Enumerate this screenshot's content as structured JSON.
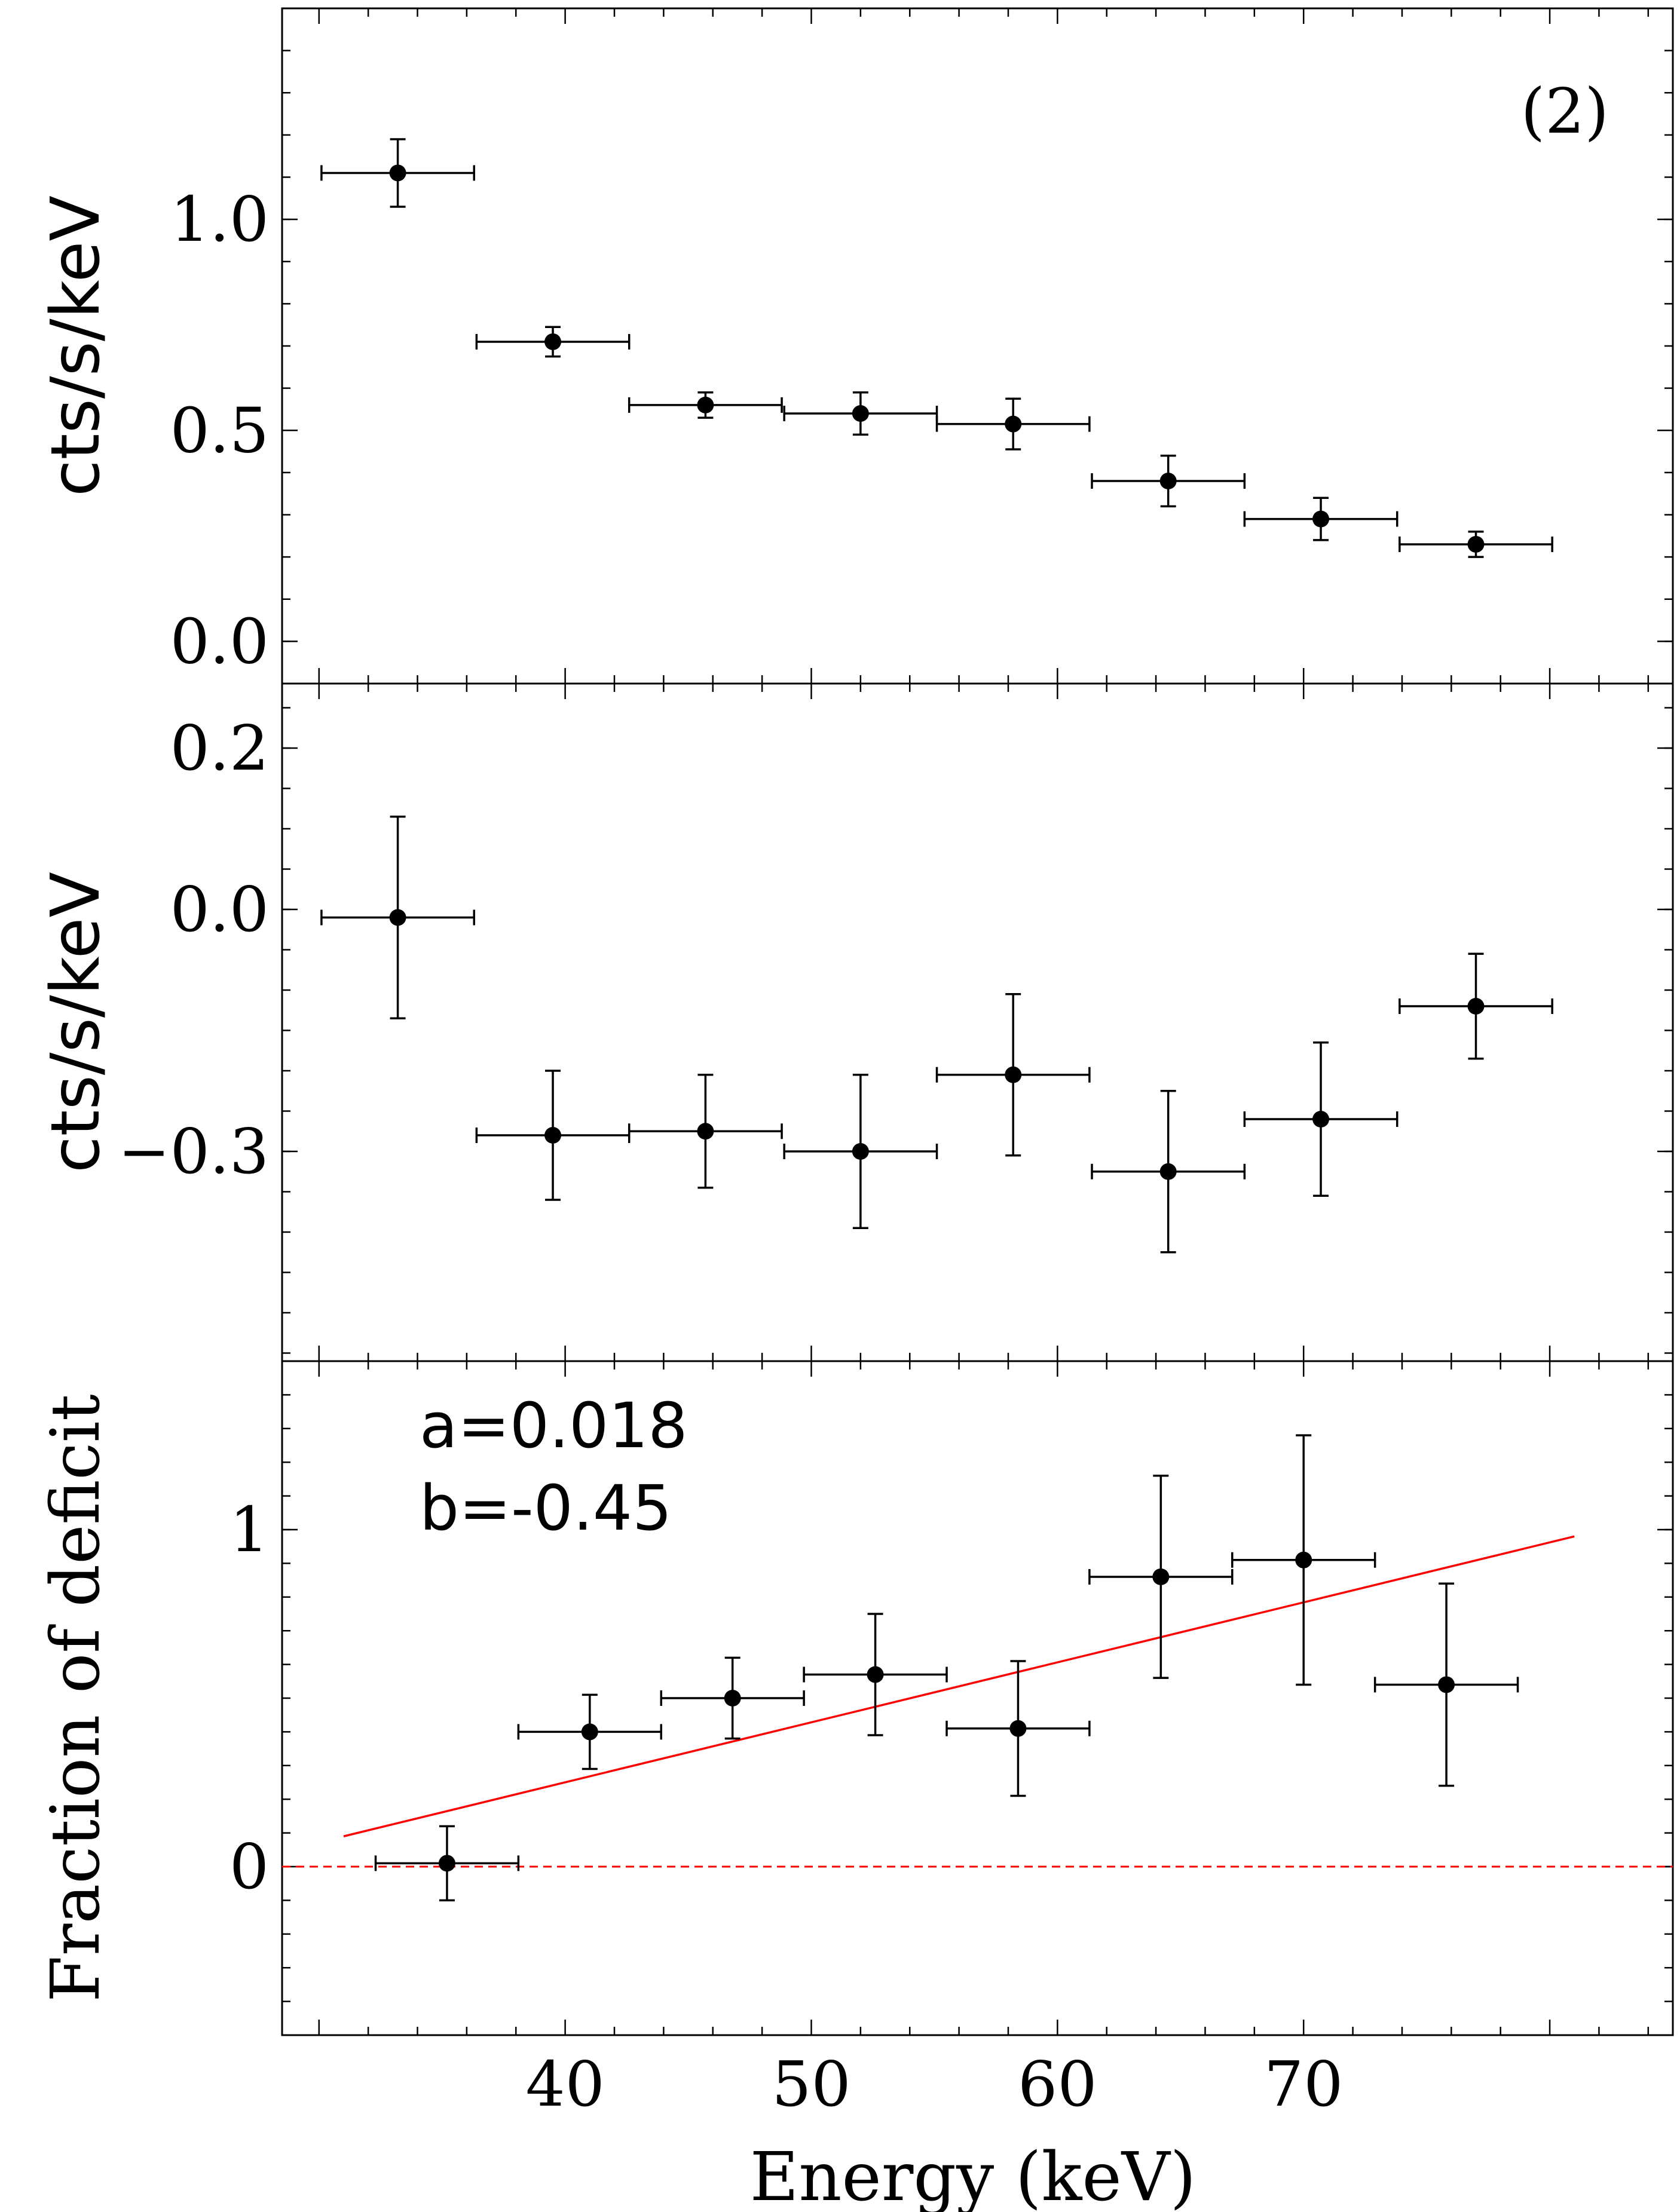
{
  "chart_data": [
    {
      "type": "scatter",
      "panel": "top",
      "ylabel": "cts/s/keV",
      "annotation": "(2)",
      "xlim": [
        28.5,
        85.0
      ],
      "ylim": [
        -0.1,
        1.5
      ],
      "yticks": [
        0.0,
        0.5,
        1.0
      ],
      "ytick_labels": [
        "0.0",
        "0.5",
        "1.0"
      ],
      "points": [
        {
          "x": 33.2,
          "xerr": 3.1,
          "y": 1.11,
          "yerr": 0.08
        },
        {
          "x": 39.5,
          "xerr": 3.1,
          "y": 0.71,
          "yerr": 0.035
        },
        {
          "x": 45.7,
          "xerr": 3.1,
          "y": 0.56,
          "yerr": 0.03
        },
        {
          "x": 52.0,
          "xerr": 3.1,
          "y": 0.54,
          "yerr": 0.05
        },
        {
          "x": 58.2,
          "xerr": 3.1,
          "y": 0.515,
          "yerr": 0.06
        },
        {
          "x": 64.5,
          "xerr": 3.1,
          "y": 0.38,
          "yerr": 0.06
        },
        {
          "x": 70.7,
          "xerr": 3.1,
          "y": 0.29,
          "yerr": 0.05
        },
        {
          "x": 77.0,
          "xerr": 3.1,
          "y": 0.23,
          "yerr": 0.03
        }
      ]
    },
    {
      "type": "scatter",
      "panel": "middle",
      "ylabel": "cts/s/keV",
      "xlim": [
        28.5,
        85.0
      ],
      "ylim": [
        -0.56,
        0.28
      ],
      "yticks": [
        -0.3,
        0.0,
        0.2
      ],
      "ytick_labels": [
        "−0.3",
        "0.0",
        "0.2"
      ],
      "points": [
        {
          "x": 33.2,
          "xerr": 3.1,
          "y": -0.01,
          "yerr": 0.125
        },
        {
          "x": 39.5,
          "xerr": 3.1,
          "y": -0.28,
          "yerr": 0.08
        },
        {
          "x": 45.7,
          "xerr": 3.1,
          "y": -0.275,
          "yerr": 0.07
        },
        {
          "x": 52.0,
          "xerr": 3.1,
          "y": -0.3,
          "yerr": 0.095
        },
        {
          "x": 58.2,
          "xerr": 3.1,
          "y": -0.205,
          "yerr": 0.1
        },
        {
          "x": 64.5,
          "xerr": 3.1,
          "y": -0.325,
          "yerr": 0.1
        },
        {
          "x": 70.7,
          "xerr": 3.1,
          "y": -0.26,
          "yerr": 0.095
        },
        {
          "x": 77.0,
          "xerr": 3.1,
          "y": -0.12,
          "yerr": 0.065
        }
      ]
    },
    {
      "type": "scatter",
      "panel": "bottom",
      "ylabel": "Fraction of deficit",
      "xlabel": "Energy (keV)",
      "annotations": [
        "a=0.018",
        "b=-0.45"
      ],
      "xlim": [
        28.5,
        85.0
      ],
      "ylim": [
        -0.5,
        1.5
      ],
      "yticks": [
        0,
        1
      ],
      "ytick_labels": [
        "0",
        "1"
      ],
      "xticks": [
        40,
        50,
        60,
        70
      ],
      "xtick_labels": [
        "40",
        "50",
        "60",
        "70"
      ],
      "points": [
        {
          "x": 35.2,
          "xerr": 2.9,
          "y": 0.01,
          "yerr": 0.11
        },
        {
          "x": 41.0,
          "xerr": 2.9,
          "y": 0.4,
          "yerr": 0.11
        },
        {
          "x": 46.8,
          "xerr": 2.9,
          "y": 0.5,
          "yerr": 0.12
        },
        {
          "x": 52.6,
          "xerr": 2.9,
          "y": 0.57,
          "yerr": 0.18
        },
        {
          "x": 58.4,
          "xerr": 2.9,
          "y": 0.41,
          "yerr": 0.2
        },
        {
          "x": 64.2,
          "xerr": 2.9,
          "y": 0.86,
          "yerr": 0.3
        },
        {
          "x": 70.0,
          "xerr": 2.9,
          "y": 0.91,
          "yerr": 0.37
        },
        {
          "x": 75.8,
          "xerr": 2.9,
          "y": 0.54,
          "yerr": 0.3
        }
      ],
      "fit_line": {
        "x": [
          31.0,
          81.0
        ],
        "y": [
          0.09,
          0.98
        ],
        "color": "#ff0000"
      },
      "reference_line": {
        "y": 0,
        "style": "dashed",
        "color": "#ff0000"
      }
    }
  ]
}
